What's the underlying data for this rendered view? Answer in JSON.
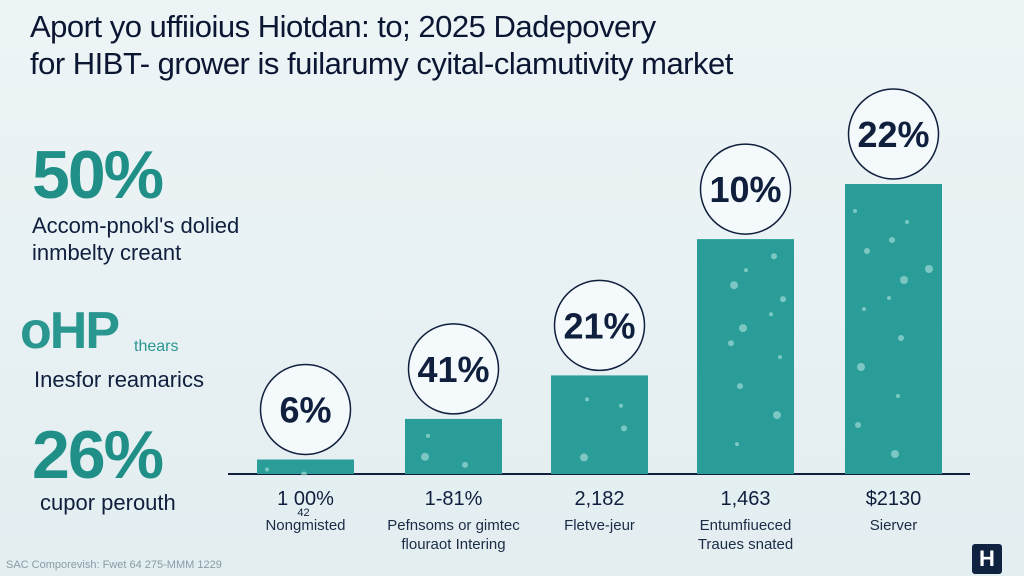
{
  "title_lines": [
    "Aport yo uffiioius Hiotdan: to; 2025 Dadepovery",
    "for HIBT- grower is fuilarumy cyital-clamutivity market"
  ],
  "left_stats": [
    {
      "value": "50%",
      "text": [
        "Accom-pnokl's dolied",
        "inmbelty creant"
      ]
    },
    {
      "value": "26%",
      "text": [
        "cupor perouth"
      ]
    }
  ],
  "logo": {
    "mark": "oHP",
    "small": "thears",
    "tagline": "Inesfor reamarics"
  },
  "footer": "SAC Comporevish: Fwet 64 275-MMM 1229",
  "brand_badge": "H",
  "colors": {
    "bar": "#2a9d99",
    "bar_light": "#3bb3ae",
    "accent": "#1f8f88",
    "text": "#0f1f3d"
  },
  "chart_data": {
    "type": "bar",
    "categories": [
      "Nongmisted",
      "Pefnsoms or gimtec flouraot Intering",
      "Fletve-jeur",
      "Entumfiueced Traues snated",
      "Sierver"
    ],
    "values": [
      6,
      41,
      21,
      10,
      22
    ],
    "value_labels": [
      "6%",
      "41%",
      "21%",
      "10%",
      "22%"
    ],
    "bar_heights": [
      5,
      19,
      34,
      81,
      100
    ],
    "tick_values": [
      "1 00%",
      "1-81%",
      "2,182",
      "1,463",
      "$2130"
    ],
    "sub_values": [
      "42",
      "",
      "",
      "",
      ""
    ],
    "category_lines": [
      [
        "Nongmisted"
      ],
      [
        "Pefnsoms or gimtec",
        "flouraot Intering"
      ],
      [
        "Fletve-jeur"
      ],
      [
        "Entumfiueced",
        "Traues snated"
      ],
      [
        "Sierver"
      ]
    ]
  }
}
